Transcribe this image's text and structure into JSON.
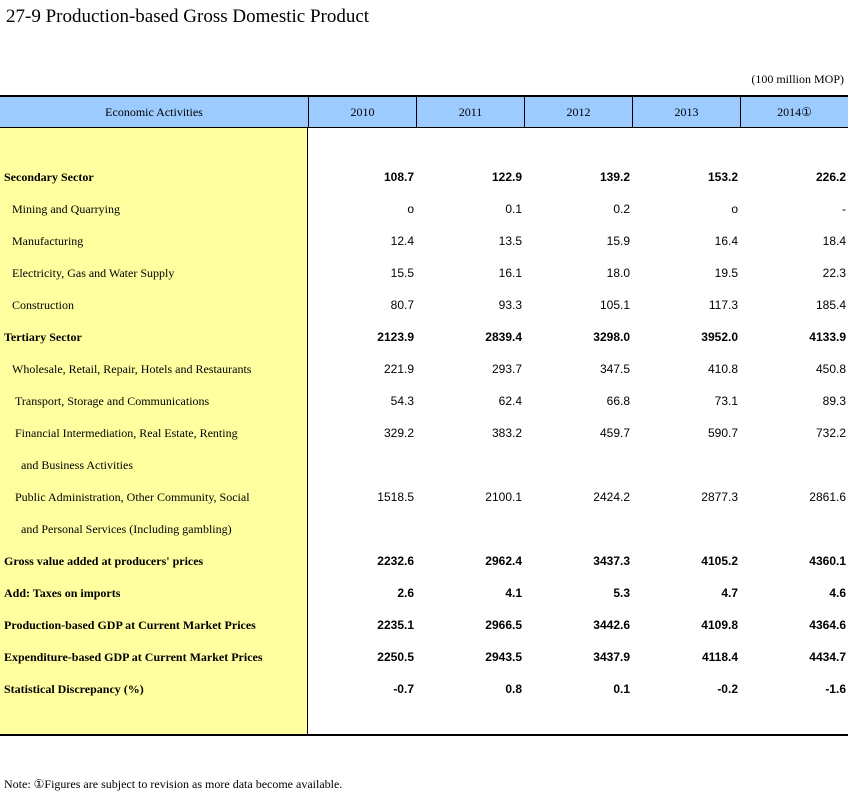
{
  "title": "27-9  Production-based Gross Domestic Product",
  "unit": "(100 million MOP)",
  "header": {
    "label": "Economic Activities",
    "years": [
      "2010",
      "2011",
      "2012",
      "2013",
      "2014①"
    ]
  },
  "rows": [
    {
      "label": "Secondary Sector",
      "bold": true,
      "indent": 0,
      "values": [
        "108.7",
        "122.9",
        "139.2",
        "153.2",
        "226.2"
      ]
    },
    {
      "label": "Mining and Quarrying",
      "bold": false,
      "indent": 1,
      "values": [
        "o",
        "0.1",
        "0.2",
        "o",
        "-"
      ]
    },
    {
      "label": "Manufacturing",
      "bold": false,
      "indent": 1,
      "values": [
        "12.4",
        "13.5",
        "15.9",
        "16.4",
        "18.4"
      ]
    },
    {
      "label": "Electricity, Gas and Water Supply",
      "bold": false,
      "indent": 1,
      "values": [
        "15.5",
        "16.1",
        "18.0",
        "19.5",
        "22.3"
      ]
    },
    {
      "label": "Construction",
      "bold": false,
      "indent": 1,
      "values": [
        "80.7",
        "93.3",
        "105.1",
        "117.3",
        "185.4"
      ]
    },
    {
      "label": "Tertiary Sector",
      "bold": true,
      "indent": 0,
      "values": [
        "2123.9",
        "2839.4",
        "3298.0",
        "3952.0",
        "4133.9"
      ]
    },
    {
      "label": "Wholesale, Retail, Repair, Hotels and Restaurants",
      "bold": false,
      "indent": 1,
      "values": [
        "221.9",
        "293.7",
        "347.5",
        "410.8",
        "450.8"
      ]
    },
    {
      "label": "Transport, Storage and Communications",
      "bold": false,
      "indent": 2,
      "values": [
        "54.3",
        "62.4",
        "66.8",
        "73.1",
        "89.3"
      ]
    },
    {
      "label": "Financial Intermediation, Real Estate, Renting",
      "bold": false,
      "indent": 2,
      "values": [
        "329.2",
        "383.2",
        "459.7",
        "590.7",
        "732.2"
      ]
    },
    {
      "label": "and Business Activities",
      "bold": false,
      "indent": 3,
      "values": []
    },
    {
      "label": "Public Administration, Other Community, Social",
      "bold": false,
      "indent": 2,
      "values": [
        "1518.5",
        "2100.1",
        "2424.2",
        "2877.3",
        "2861.6"
      ]
    },
    {
      "label": "and Personal Services (Including gambling)",
      "bold": false,
      "indent": 3,
      "values": []
    },
    {
      "label": "Gross value added at producers' prices",
      "bold": true,
      "indent": 0,
      "values": [
        "2232.6",
        "2962.4",
        "3437.3",
        "4105.2",
        "4360.1"
      ]
    },
    {
      "label": "Add: Taxes on imports",
      "bold": true,
      "indent": 0,
      "values": [
        "2.6",
        "4.1",
        "5.3",
        "4.7",
        "4.6"
      ]
    },
    {
      "label": "Production-based GDP at Current Market Prices",
      "bold": true,
      "indent": 0,
      "values": [
        "2235.1",
        "2966.5",
        "3442.6",
        "4109.8",
        "4364.6"
      ]
    },
    {
      "label": "Expenditure-based GDP at Current Market Prices",
      "bold": true,
      "indent": 0,
      "values": [
        "2250.5",
        "2943.5",
        "3437.9",
        "4118.4",
        "4434.7"
      ]
    },
    {
      "label": "Statistical Discrepancy (%)",
      "bold": true,
      "indent": 0,
      "values": [
        "-0.7",
        "0.8",
        "0.1",
        "-0.2",
        "-1.6"
      ]
    }
  ],
  "note": "Note: ①Figures are subject to revision as more data become available."
}
